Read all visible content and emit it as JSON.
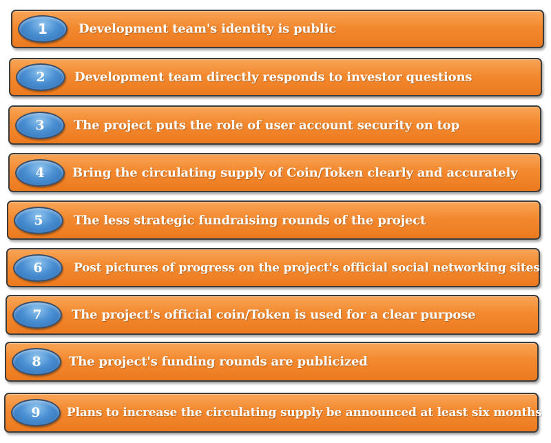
{
  "items": [
    {
      "number": "1",
      "text": "Development team's identity is public"
    },
    {
      "number": "2",
      "text": "Development team directly responds to investor questions"
    },
    {
      "number": "3",
      "text": "The project puts the role of user account security on top"
    },
    {
      "number": "4",
      "text": "Bring the circulating supply of Coin/Token clearly and accurately"
    },
    {
      "number": "5",
      "text": "The less strategic fundraising rounds of the project"
    },
    {
      "number": "6",
      "text": "Post pictures of progress on the project's official social networking sites"
    },
    {
      "number": "7",
      "text": "The project's official coin/Token is used for a clear purpose"
    },
    {
      "number": "8",
      "text": "The project's funding rounds are publicized"
    },
    {
      "number": "9",
      "text": "Plans to increase the circulating supply be announced at least six months"
    }
  ]
}
